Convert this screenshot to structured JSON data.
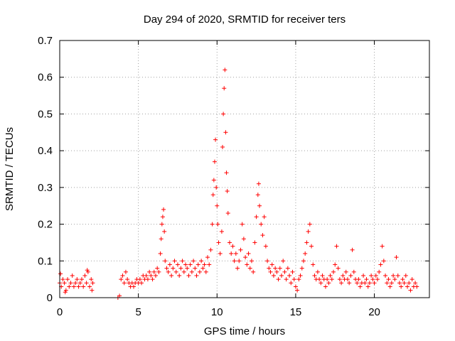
{
  "chart_data": {
    "type": "scatter",
    "title": "Day 294 of 2020, SRMTID for receiver ters",
    "xlabel": "GPS time / hours",
    "ylabel": "SRMTID / TECUs",
    "xlim": [
      0,
      23.5
    ],
    "ylim": [
      0,
      0.7
    ],
    "x_ticks": [
      0,
      5,
      10,
      15,
      20
    ],
    "x_tick_labels": [
      "0",
      "5",
      "10",
      "15",
      "20"
    ],
    "y_ticks": [
      0,
      0.1,
      0.2,
      0.3,
      0.4,
      0.5,
      0.6,
      0.7
    ],
    "y_tick_labels": [
      "0",
      "0.1",
      "0.2",
      "0.3",
      "0.4",
      "0.5",
      "0.6",
      "0.7"
    ],
    "grid": true,
    "series": [
      {
        "name": "SRMTID",
        "marker": "+",
        "color": "#ff0000",
        "points": [
          [
            0.0,
            0.04
          ],
          [
            0.1,
            0.03
          ],
          [
            0.2,
            0.05
          ],
          [
            0.3,
            0.04
          ],
          [
            0.4,
            0.02
          ],
          [
            0.5,
            0.05
          ],
          [
            0.6,
            0.03
          ],
          [
            0.7,
            0.04
          ],
          [
            0.8,
            0.06
          ],
          [
            0.9,
            0.03
          ],
          [
            1.0,
            0.04
          ],
          [
            1.1,
            0.05
          ],
          [
            1.2,
            0.03
          ],
          [
            1.3,
            0.04
          ],
          [
            1.4,
            0.05
          ],
          [
            1.5,
            0.03
          ],
          [
            1.6,
            0.06
          ],
          [
            1.7,
            0.04
          ],
          [
            1.8,
            0.07
          ],
          [
            1.9,
            0.03
          ],
          [
            2.0,
            0.05
          ],
          [
            2.1,
            0.04
          ],
          [
            0.05,
            0.065
          ],
          [
            0.35,
            0.015
          ],
          [
            1.75,
            0.075
          ],
          [
            2.05,
            0.02
          ],
          [
            3.7,
            0.0
          ],
          [
            3.8,
            0.005
          ],
          [
            3.9,
            0.05
          ],
          [
            4.0,
            0.06
          ],
          [
            4.1,
            0.04
          ],
          [
            4.2,
            0.07
          ],
          [
            4.3,
            0.05
          ],
          [
            4.4,
            0.04
          ],
          [
            4.5,
            0.03
          ],
          [
            4.6,
            0.04
          ],
          [
            4.7,
            0.03
          ],
          [
            4.8,
            0.04
          ],
          [
            4.9,
            0.05
          ],
          [
            5.0,
            0.04
          ],
          [
            5.1,
            0.05
          ],
          [
            5.2,
            0.04
          ],
          [
            5.3,
            0.06
          ],
          [
            5.4,
            0.05
          ],
          [
            5.5,
            0.06
          ],
          [
            5.6,
            0.05
          ],
          [
            5.7,
            0.07
          ],
          [
            5.8,
            0.06
          ],
          [
            5.9,
            0.05
          ],
          [
            6.0,
            0.07
          ],
          [
            6.1,
            0.06
          ],
          [
            6.2,
            0.08
          ],
          [
            6.3,
            0.07
          ],
          [
            6.4,
            0.12
          ],
          [
            6.45,
            0.16
          ],
          [
            6.5,
            0.2
          ],
          [
            6.55,
            0.22
          ],
          [
            6.6,
            0.24
          ],
          [
            6.65,
            0.18
          ],
          [
            6.7,
            0.1
          ],
          [
            6.8,
            0.08
          ],
          [
            6.9,
            0.07
          ],
          [
            7.0,
            0.09
          ],
          [
            7.1,
            0.06
          ],
          [
            7.2,
            0.08
          ],
          [
            7.3,
            0.1
          ],
          [
            7.4,
            0.07
          ],
          [
            7.5,
            0.09
          ],
          [
            7.6,
            0.06
          ],
          [
            7.7,
            0.08
          ],
          [
            7.8,
            0.1
          ],
          [
            7.9,
            0.07
          ],
          [
            8.0,
            0.09
          ],
          [
            8.1,
            0.08
          ],
          [
            8.2,
            0.06
          ],
          [
            8.3,
            0.09
          ],
          [
            8.4,
            0.07
          ],
          [
            8.5,
            0.1
          ],
          [
            8.6,
            0.08
          ],
          [
            8.7,
            0.06
          ],
          [
            8.8,
            0.09
          ],
          [
            8.9,
            0.07
          ],
          [
            9.0,
            0.1
          ],
          [
            9.1,
            0.08
          ],
          [
            9.2,
            0.09
          ],
          [
            9.3,
            0.07
          ],
          [
            9.4,
            0.11
          ],
          [
            9.5,
            0.09
          ],
          [
            9.6,
            0.13
          ],
          [
            9.7,
            0.2
          ],
          [
            9.75,
            0.28
          ],
          [
            9.8,
            0.32
          ],
          [
            9.85,
            0.37
          ],
          [
            9.9,
            0.43
          ],
          [
            9.95,
            0.3
          ],
          [
            10.0,
            0.25
          ],
          [
            10.05,
            0.2
          ],
          [
            10.1,
            0.15
          ],
          [
            10.2,
            0.12
          ],
          [
            10.3,
            0.18
          ],
          [
            10.35,
            0.41
          ],
          [
            10.4,
            0.5
          ],
          [
            10.45,
            0.57
          ],
          [
            10.5,
            0.62
          ],
          [
            10.55,
            0.45
          ],
          [
            10.6,
            0.34
          ],
          [
            10.65,
            0.29
          ],
          [
            10.7,
            0.23
          ],
          [
            10.8,
            0.15
          ],
          [
            10.9,
            0.12
          ],
          [
            11.0,
            0.14
          ],
          [
            11.1,
            0.1
          ],
          [
            11.2,
            0.12
          ],
          [
            11.3,
            0.08
          ],
          [
            11.4,
            0.1
          ],
          [
            11.5,
            0.13
          ],
          [
            11.6,
            0.2
          ],
          [
            11.7,
            0.16
          ],
          [
            11.8,
            0.11
          ],
          [
            11.9,
            0.09
          ],
          [
            12.0,
            0.12
          ],
          [
            12.1,
            0.08
          ],
          [
            12.2,
            0.1
          ],
          [
            12.3,
            0.07
          ],
          [
            12.4,
            0.15
          ],
          [
            12.5,
            0.22
          ],
          [
            12.6,
            0.28
          ],
          [
            12.65,
            0.31
          ],
          [
            12.7,
            0.25
          ],
          [
            12.8,
            0.2
          ],
          [
            12.9,
            0.17
          ],
          [
            13.0,
            0.22
          ],
          [
            13.1,
            0.14
          ],
          [
            13.2,
            0.1
          ],
          [
            13.3,
            0.08
          ],
          [
            13.4,
            0.07
          ],
          [
            13.5,
            0.09
          ],
          [
            13.6,
            0.06
          ],
          [
            13.7,
            0.08
          ],
          [
            13.8,
            0.07
          ],
          [
            13.9,
            0.05
          ],
          [
            14.0,
            0.08
          ],
          [
            14.1,
            0.06
          ],
          [
            14.2,
            0.1
          ],
          [
            14.3,
            0.07
          ],
          [
            14.4,
            0.05
          ],
          [
            14.5,
            0.08
          ],
          [
            14.6,
            0.06
          ],
          [
            14.7,
            0.04
          ],
          [
            14.8,
            0.07
          ],
          [
            14.9,
            0.05
          ],
          [
            15.0,
            0.03
          ],
          [
            15.1,
            0.02
          ],
          [
            15.2,
            0.05
          ],
          [
            15.3,
            0.06
          ],
          [
            15.4,
            0.08
          ],
          [
            15.5,
            0.1
          ],
          [
            15.6,
            0.12
          ],
          [
            15.7,
            0.15
          ],
          [
            15.8,
            0.18
          ],
          [
            15.9,
            0.2
          ],
          [
            16.0,
            0.14
          ],
          [
            16.1,
            0.09
          ],
          [
            16.2,
            0.06
          ],
          [
            16.3,
            0.05
          ],
          [
            16.4,
            0.07
          ],
          [
            16.5,
            0.05
          ],
          [
            16.6,
            0.04
          ],
          [
            16.7,
            0.06
          ],
          [
            16.8,
            0.05
          ],
          [
            16.9,
            0.03
          ],
          [
            17.0,
            0.05
          ],
          [
            17.1,
            0.04
          ],
          [
            17.2,
            0.06
          ],
          [
            17.3,
            0.05
          ],
          [
            17.4,
            0.07
          ],
          [
            17.5,
            0.09
          ],
          [
            17.6,
            0.14
          ],
          [
            17.7,
            0.08
          ],
          [
            17.8,
            0.05
          ],
          [
            17.9,
            0.04
          ],
          [
            18.0,
            0.06
          ],
          [
            18.1,
            0.05
          ],
          [
            18.2,
            0.07
          ],
          [
            18.3,
            0.05
          ],
          [
            18.4,
            0.04
          ],
          [
            18.5,
            0.06
          ],
          [
            18.6,
            0.13
          ],
          [
            18.7,
            0.07
          ],
          [
            18.8,
            0.05
          ],
          [
            18.9,
            0.04
          ],
          [
            19.0,
            0.05
          ],
          [
            19.1,
            0.03
          ],
          [
            19.2,
            0.04
          ],
          [
            19.3,
            0.06
          ],
          [
            19.4,
            0.04
          ],
          [
            19.5,
            0.05
          ],
          [
            19.6,
            0.03
          ],
          [
            19.7,
            0.04
          ],
          [
            19.8,
            0.06
          ],
          [
            19.9,
            0.05
          ],
          [
            20.0,
            0.04
          ],
          [
            20.1,
            0.06
          ],
          [
            20.2,
            0.05
          ],
          [
            20.3,
            0.07
          ],
          [
            20.4,
            0.09
          ],
          [
            20.5,
            0.14
          ],
          [
            20.6,
            0.1
          ],
          [
            20.7,
            0.06
          ],
          [
            20.8,
            0.04
          ],
          [
            20.9,
            0.05
          ],
          [
            21.0,
            0.03
          ],
          [
            21.1,
            0.04
          ],
          [
            21.2,
            0.06
          ],
          [
            21.3,
            0.05
          ],
          [
            21.4,
            0.11
          ],
          [
            21.5,
            0.06
          ],
          [
            21.6,
            0.04
          ],
          [
            21.7,
            0.03
          ],
          [
            21.8,
            0.05
          ],
          [
            21.9,
            0.04
          ],
          [
            22.0,
            0.06
          ],
          [
            22.1,
            0.03
          ],
          [
            22.2,
            0.04
          ],
          [
            22.3,
            0.02
          ],
          [
            22.4,
            0.05
          ],
          [
            22.5,
            0.03
          ],
          [
            22.6,
            0.04
          ],
          [
            22.7,
            0.03
          ]
        ]
      }
    ]
  }
}
